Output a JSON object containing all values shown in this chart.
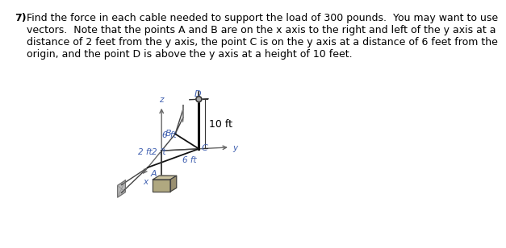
{
  "title_number": "7)",
  "title_text": "Find the force in each cable needed to support the load of 300 pounds.  You may want to use\nvectors.  Note that the points A and B are on the x axis to the right and left of the y axis at a\ndistance of 2 feet from the y axis, the point C is on the y axis at a distance of 6 feet from the\norigin, and the point D is above the y axis at a height of 10 feet.",
  "label_10ft": "10 ft",
  "label_6ft_left": "6 ft",
  "label_6ft_right": "6 ft",
  "label_2ft_top": "2 ft",
  "label_2ft_bot": "2 ft",
  "label_A": "A",
  "label_B": "B",
  "label_C": "C",
  "label_D": "D",
  "label_x": "x",
  "label_y": "y",
  "label_z": "z",
  "bg_color": "#ffffff",
  "axis_color": "#666666",
  "cable_color": "#111111",
  "struct_color": "#444444",
  "label_color": "#4060b0",
  "dim_color": "#4060b0",
  "text_color": "#000000",
  "box_fill": "#b0a880",
  "box_top": "#ccc4a0",
  "bracket_fill": "#b0b0b0",
  "title_fontsize": 9.0
}
